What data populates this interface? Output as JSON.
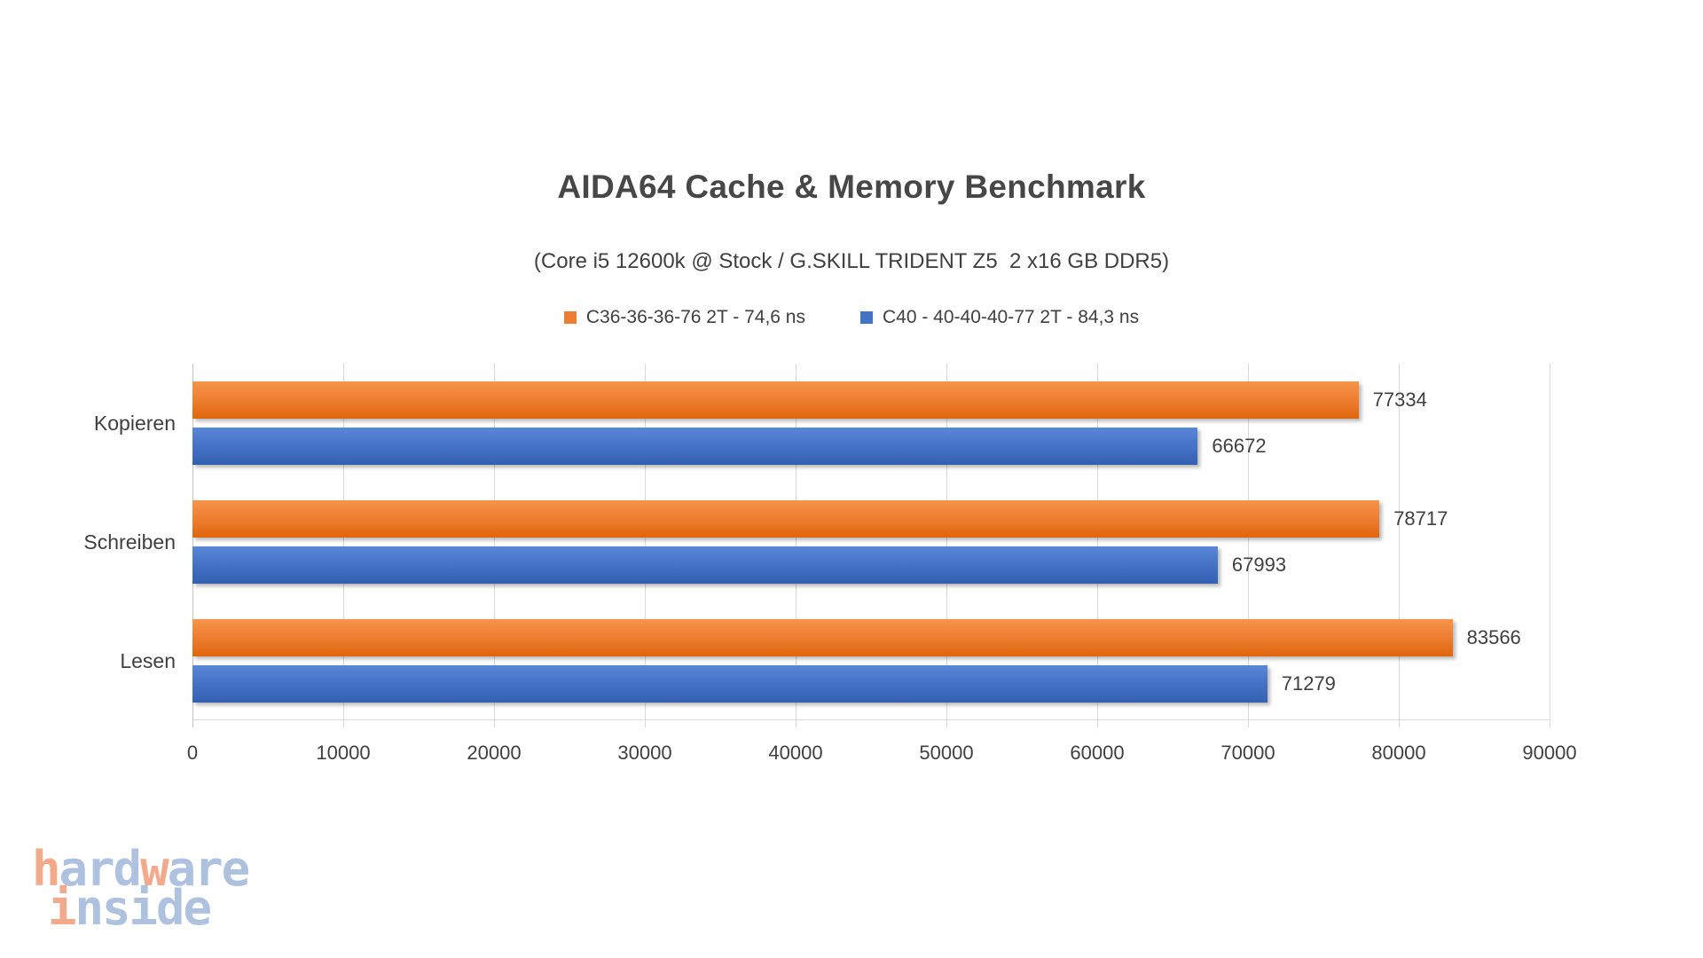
{
  "title": "AIDA64 Cache & Memory Benchmark",
  "subtitle": "(Core i5 12600k @ Stock / G.SKILL TRIDENT Z5  2 x16 GB DDR5)",
  "legend": [
    {
      "label": "C36-36-36-76 2T - 74,6 ns",
      "color": "#ED7D31"
    },
    {
      "label": "C40 - 40-40-40-77 2T - 84,3 ns",
      "color": "#4472C4"
    }
  ],
  "chart_data": {
    "type": "bar",
    "orientation": "horizontal",
    "title": "AIDA64 Cache & Memory Benchmark",
    "subtitle": "(Core i5 12600k @ Stock / G.SKILL TRIDENT Z5  2 x16 GB DDR5)",
    "categories": [
      "Kopieren",
      "Schreiben",
      "Lesen"
    ],
    "series": [
      {
        "name": "C36-36-36-76 2T - 74,6 ns",
        "color": "#ED7D31",
        "values": [
          77334,
          78717,
          83566
        ]
      },
      {
        "name": "C40 - 40-40-40-77 2T - 84,3 ns",
        "color": "#4472C4",
        "values": [
          66672,
          67993,
          71279
        ]
      }
    ],
    "xlim": [
      0,
      90000
    ],
    "x_ticks": [
      0,
      10000,
      20000,
      30000,
      40000,
      50000,
      60000,
      70000,
      80000,
      90000
    ],
    "grid": true,
    "legend_position": "top",
    "value_labels": true
  },
  "colors": {
    "series_orange": "#ED7D31",
    "series_blue": "#4472C4",
    "gridline": "#D9D9D9",
    "text": "#404040",
    "background": "#FFFFFF"
  },
  "watermark": {
    "lines": [
      [
        {
          "t": "h",
          "c": "salmon"
        },
        {
          "t": "ard",
          "c": "blue"
        },
        {
          "t": "w",
          "c": "salmon"
        },
        {
          "t": "are",
          "c": "blue"
        }
      ],
      [
        {
          "t": "i",
          "c": "salmon"
        },
        {
          "t": "nside",
          "c": "blue"
        }
      ]
    ],
    "palette": {
      "salmon": "#F3A98C",
      "blue": "#AEC2E0"
    }
  }
}
